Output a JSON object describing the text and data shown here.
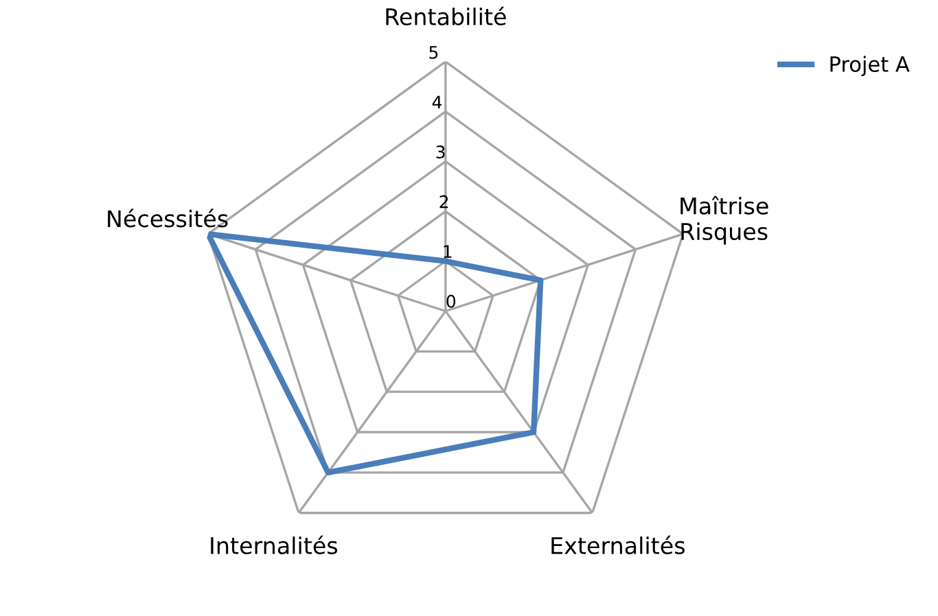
{
  "chart_data": {
    "type": "radar",
    "categories": [
      "Rentabilité",
      "Maîtrise\nRisques",
      "Externalités",
      "Internalités",
      "Nécessités"
    ],
    "series": [
      {
        "name": "Projet A",
        "color": "#4a7ebb",
        "values": [
          1,
          2,
          3,
          4,
          5
        ]
      }
    ],
    "ylim": [
      0,
      5
    ],
    "yticks": [
      0,
      1,
      2,
      3,
      4,
      5
    ],
    "grid": true,
    "legend": "top right",
    "marker": "none",
    "line_style": "solid"
  }
}
